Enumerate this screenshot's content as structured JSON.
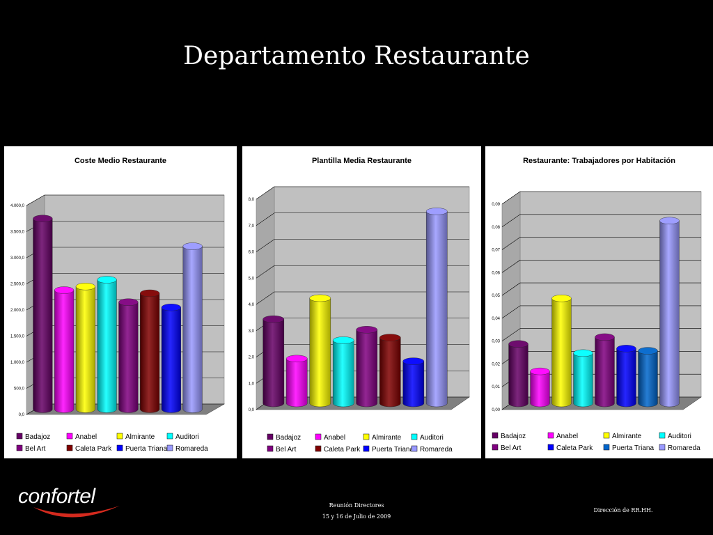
{
  "slide": {
    "title": "Departamento Restaurante",
    "footer_line1": "Reunión Directores",
    "footer_line2": "15 y 16 de Julio de 2009",
    "footer_right": "Dirección de RR.HH.",
    "logo_text": "confortel"
  },
  "colors": {
    "background": "#000000",
    "panel": "#ffffff",
    "plot_area": "#c0c0c0"
  },
  "chart_data": [
    {
      "type": "bar",
      "title": "Coste Medio Restaurante",
      "categories": [
        "Badajoz",
        "Anabel",
        "Almirante",
        "Auditori",
        "Bel Art",
        "Caleta Park",
        "Puerta Triana",
        "Romareda"
      ],
      "values": [
        3650,
        2280,
        2350,
        2480,
        2050,
        2220,
        1950,
        3120
      ],
      "colors": [
        "#660066",
        "#ff00ff",
        "#ffff00",
        "#00ffff",
        "#800080",
        "#800000",
        "#0000ff",
        "#9999ff"
      ],
      "ylim": [
        0,
        4000
      ],
      "yticks": [
        "0,0",
        "500,0",
        "1.000,0",
        "1.500,0",
        "2.000,0",
        "2.500,0",
        "3.000,0",
        "3.500,0",
        "4.000,0"
      ],
      "legend": [
        "Badajoz",
        "Anabel",
        "Almirante",
        "Auditori",
        "Bel Art",
        "Caleta Park",
        "Puerta Triana",
        "Romareda"
      ],
      "legend_colors": [
        "#660066",
        "#ff00ff",
        "#ffff00",
        "#00ffff",
        "#800080",
        "#800000",
        "#0000ff",
        "#9999ff"
      ],
      "grid": true,
      "legend_position": "bottom"
    },
    {
      "type": "bar",
      "title": "Plantilla Media Restaurante",
      "categories": [
        "Badajoz",
        "Anabel",
        "Almirante",
        "Auditori",
        "Bel Art",
        "Caleta Park",
        "Puerta Triana",
        "Romareda"
      ],
      "values": [
        3.2,
        1.7,
        4.0,
        2.4,
        2.8,
        2.5,
        1.6,
        7.3
      ],
      "colors": [
        "#660066",
        "#ff00ff",
        "#ffff00",
        "#00ffff",
        "#800080",
        "#800000",
        "#0000ff",
        "#9999ff"
      ],
      "ylim": [
        0,
        8
      ],
      "yticks": [
        "0,0",
        "1,0",
        "2,0",
        "3,0",
        "4,0",
        "5,0",
        "6,0",
        "7,0",
        "8,0"
      ],
      "legend": [
        "Badajoz",
        "Anabel",
        "Almirante",
        "Auditori",
        "Bel Art",
        "Caleta Park",
        "Puerta Triana",
        "Romareda"
      ],
      "legend_colors": [
        "#660066",
        "#ff00ff",
        "#ffff00",
        "#00ffff",
        "#800080",
        "#800000",
        "#0000ff",
        "#9999ff"
      ],
      "grid": true,
      "legend_position": "bottom"
    },
    {
      "type": "bar",
      "title": "Restaurante: Trabajadores por Habitación",
      "categories": [
        "Badajoz",
        "Anabel",
        "Almirante",
        "Auditori",
        "Bel Art",
        "Caleta Park",
        "Puerta Triana",
        "Romareda"
      ],
      "values": [
        0.026,
        0.014,
        0.046,
        0.022,
        0.029,
        0.024,
        0.023,
        0.08
      ],
      "colors": [
        "#660066",
        "#ff00ff",
        "#ffff00",
        "#00ffff",
        "#800080",
        "#0000ff",
        "#0066cc",
        "#9999ff"
      ],
      "ylim": [
        0,
        0.09
      ],
      "yticks": [
        "0,00",
        "0,01",
        "0,02",
        "0,03",
        "0,04",
        "0,05",
        "0,06",
        "0,07",
        "0,08",
        "0,09"
      ],
      "legend": [
        "Badajoz",
        "Anabel",
        "Almirante",
        "Auditori",
        "Bel Art",
        "Caleta Park",
        "Puerta Triana",
        "Romareda"
      ],
      "legend_colors": [
        "#660066",
        "#ff00ff",
        "#ffff00",
        "#00ffff",
        "#800080",
        "#0000ff",
        "#0066cc",
        "#9999ff"
      ],
      "grid": true,
      "legend_position": "bottom"
    }
  ]
}
